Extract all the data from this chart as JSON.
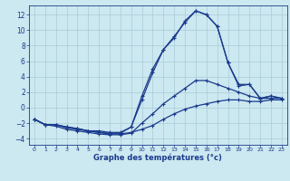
{
  "title": "Graphe des températures (°c)",
  "bg_color": "#cce8f0",
  "line_color": "#1a3a8c",
  "grid_color": "#a8ccd8",
  "xlim": [
    -0.5,
    23.5
  ],
  "ylim": [
    -4.8,
    13.2
  ],
  "xticks": [
    0,
    1,
    2,
    3,
    4,
    5,
    6,
    7,
    8,
    9,
    10,
    11,
    12,
    13,
    14,
    15,
    16,
    17,
    18,
    19,
    20,
    21,
    22,
    23
  ],
  "yticks": [
    -4,
    -2,
    0,
    2,
    4,
    6,
    8,
    10,
    12
  ],
  "series1_y": [
    -1.5,
    -2.2,
    -2.2,
    -2.6,
    -2.8,
    -3.0,
    -3.2,
    -3.4,
    -3.4,
    -3.2,
    -2.8,
    -2.3,
    -1.5,
    -0.8,
    -0.2,
    0.2,
    0.5,
    0.8,
    1.0,
    1.0,
    0.8,
    0.8,
    1.0,
    1.0
  ],
  "series2_y": [
    -1.5,
    -2.2,
    -2.4,
    -2.8,
    -3.0,
    -3.2,
    -3.4,
    -3.5,
    -3.5,
    -3.3,
    -2.0,
    -0.8,
    0.5,
    1.5,
    2.5,
    3.5,
    3.5,
    3.0,
    2.5,
    2.0,
    1.5,
    1.2,
    1.2,
    1.2
  ],
  "series3_y": [
    -1.5,
    -2.2,
    -2.2,
    -2.5,
    -2.7,
    -3.0,
    -3.0,
    -3.2,
    -3.2,
    -2.5,
    1.0,
    4.5,
    7.5,
    9.2,
    11.0,
    12.5,
    12.0,
    10.5,
    5.8,
    3.0,
    3.0,
    1.2,
    1.5,
    1.2
  ],
  "series4_y": [
    -1.5,
    -2.2,
    -2.2,
    -2.5,
    -2.7,
    -3.0,
    -3.2,
    -3.3,
    -3.3,
    -2.5,
    1.5,
    5.0,
    7.5,
    9.0,
    11.2,
    12.5,
    12.0,
    10.5,
    5.8,
    2.8,
    3.0,
    1.2,
    1.5,
    1.2
  ]
}
